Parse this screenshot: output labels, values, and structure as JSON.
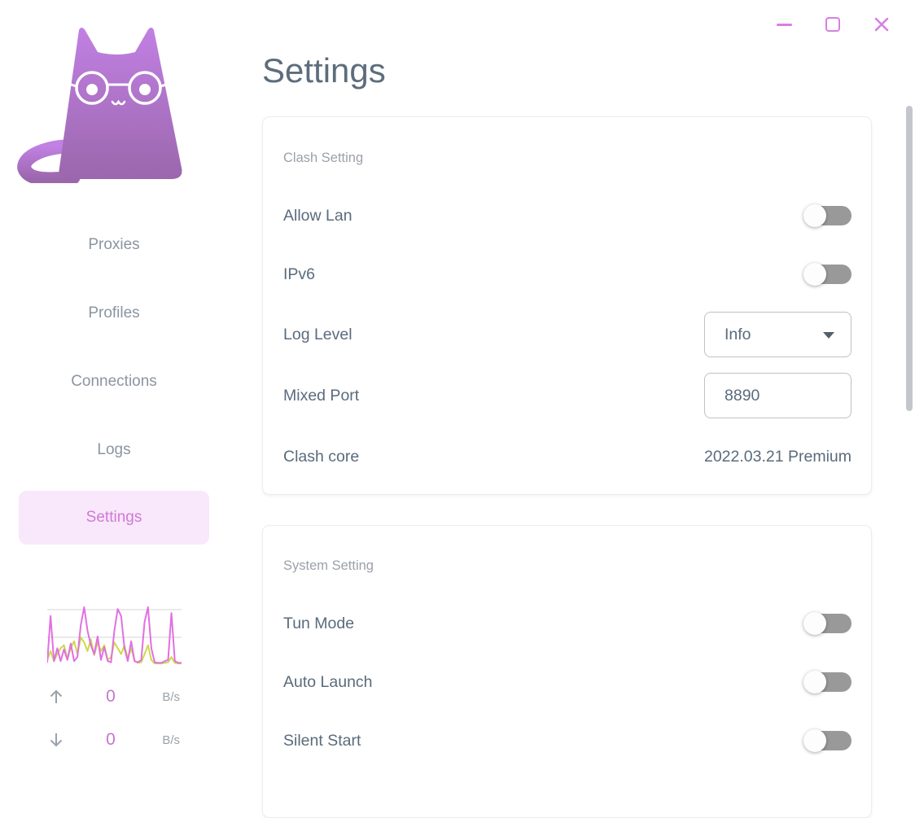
{
  "window": {
    "controls": [
      {
        "name": "minimize-icon"
      },
      {
        "name": "maximize-icon"
      },
      {
        "name": "close-icon"
      }
    ],
    "accent_color": "#d77fe2"
  },
  "sidebar": {
    "logo": "clash-cat-logo",
    "logo_colors": {
      "top": "#c180e3",
      "bottom": "#9b67ac"
    },
    "items": [
      {
        "label": "Proxies",
        "active": false
      },
      {
        "label": "Profiles",
        "active": false
      },
      {
        "label": "Connections",
        "active": false
      },
      {
        "label": "Logs",
        "active": false
      },
      {
        "label": "Settings",
        "active": true
      }
    ],
    "active_colors": {
      "background": "#f9e7fb",
      "text": "#cf7ad6"
    },
    "traffic": {
      "up": {
        "icon": "arrow-up-icon",
        "value": "0",
        "unit": "B/s"
      },
      "down": {
        "icon": "arrow-down-icon",
        "value": "0",
        "unit": "B/s"
      }
    }
  },
  "header": {
    "title": "Settings"
  },
  "cards": [
    {
      "title": "Clash Setting",
      "rows": [
        {
          "label": "Allow Lan",
          "type": "switch",
          "state": "off"
        },
        {
          "label": "IPv6",
          "type": "switch",
          "state": "off"
        },
        {
          "label": "Log Level",
          "type": "select",
          "value": "Info"
        },
        {
          "label": "Mixed Port",
          "type": "input",
          "value": "8890"
        },
        {
          "label": "Clash core",
          "type": "text",
          "value": "2022.03.21 Premium"
        }
      ]
    },
    {
      "title": "System Setting",
      "rows": [
        {
          "label": "Tun Mode",
          "type": "switch",
          "state": "off"
        },
        {
          "label": "Auto Launch",
          "type": "switch",
          "state": "off"
        },
        {
          "label": "Silent Start",
          "type": "switch",
          "state": "off"
        }
      ]
    }
  ],
  "chart_data": {
    "type": "line",
    "title": "traffic sparkline",
    "xlabel": "",
    "ylabel": "",
    "ylim": [
      0,
      100
    ],
    "grid": true,
    "legend_position": "none",
    "series": [
      {
        "name": "up",
        "color": "#e170e1",
        "values": [
          5,
          85,
          8,
          30,
          8,
          28,
          10,
          38,
          8,
          15,
          70,
          100,
          60,
          35,
          20,
          50,
          10,
          32,
          8,
          6,
          60,
          97,
          85,
          30,
          8,
          42,
          8,
          6,
          10,
          75,
          100,
          30,
          6,
          5,
          5,
          8,
          10,
          90,
          8,
          5,
          5
        ]
      },
      {
        "name": "down",
        "color": "#cdd94a",
        "values": [
          10,
          25,
          8,
          20,
          30,
          35,
          12,
          30,
          42,
          20,
          48,
          40,
          25,
          45,
          18,
          40,
          25,
          35,
          10,
          15,
          40,
          30,
          20,
          35,
          12,
          30,
          8,
          5,
          6,
          20,
          35,
          10,
          4,
          4,
          4,
          5,
          6,
          15,
          5,
          4,
          4
        ]
      }
    ]
  }
}
